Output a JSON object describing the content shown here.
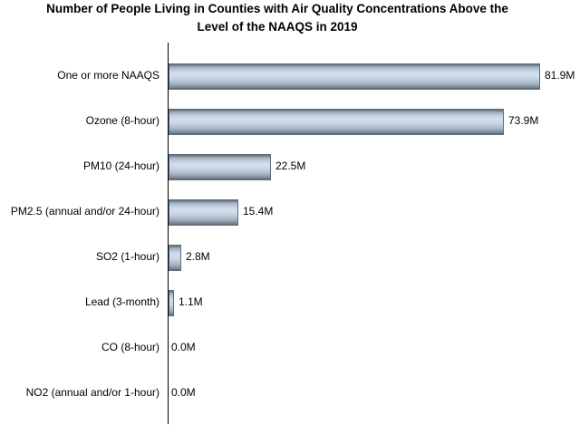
{
  "title_lines": [
    "Number of People Living in Counties with Air Quality Concentrations Above the",
    "Level of the NAAQS in 2019"
  ],
  "chart_data": {
    "type": "bar",
    "orientation": "horizontal",
    "title": "Number of People Living in Counties with Air Quality Concentrations Above the Level of the NAAQS in 2019",
    "categories": [
      "One or more NAAQS",
      "Ozone (8-hour)",
      "PM10 (24-hour)",
      "PM2.5 (annual and/or 24-hour)",
      "SO2 (1-hour)",
      "Lead (3-month)",
      "CO (8-hour)",
      "NO2 (annual and/or 1-hour)"
    ],
    "values": [
      81.9,
      73.9,
      22.5,
      15.4,
      2.8,
      1.1,
      0.0,
      0.0
    ],
    "value_labels": [
      "81.9M",
      "73.9M",
      "22.5M",
      "15.4M",
      "2.8M",
      "1.1M",
      "0.0M",
      "0.0M"
    ],
    "xlabel": "",
    "ylabel": "",
    "xlim": [
      0,
      90
    ],
    "grid": false,
    "legend": false,
    "x_tick_labels_visible": false
  },
  "colors": {
    "background": "#ffffff",
    "text": "#000000",
    "axis_line": "#000000",
    "bar_border": "#5f6c78",
    "bar_dark": "#5d6a76",
    "bar_light": "#d1dfec",
    "bar_mid": "#c5d4e2"
  }
}
